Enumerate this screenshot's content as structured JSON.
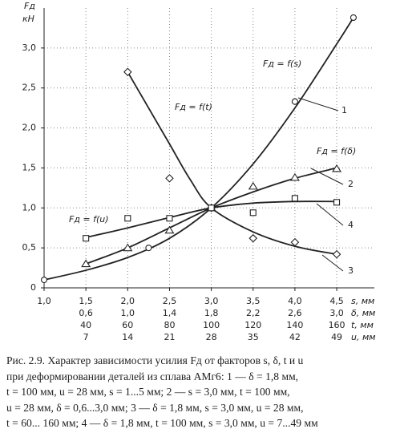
{
  "chart_data": {
    "type": "line",
    "y_label": "Fд",
    "y_unit": "кН",
    "xlim": [
      1.0,
      4.95
    ],
    "ylim": [
      0,
      3.5
    ],
    "xticks": [
      {
        "value": 1.0,
        "label": "1,0"
      },
      {
        "value": 1.5,
        "label": "1,5"
      },
      {
        "value": 2.0,
        "label": "2,0"
      },
      {
        "value": 2.5,
        "label": "2,5"
      },
      {
        "value": 3.0,
        "label": "3,0"
      },
      {
        "value": 3.5,
        "label": "3,5"
      },
      {
        "value": 4.0,
        "label": "4,0"
      },
      {
        "value": 4.5,
        "label": "4,5"
      }
    ],
    "yticks": [
      0,
      {
        "value": 0.5,
        "label": "0,5"
      },
      {
        "value": 1.0,
        "label": "1,0"
      },
      {
        "value": 1.5,
        "label": "1,5"
      },
      {
        "value": 2.0,
        "label": "2,0"
      },
      {
        "value": 2.5,
        "label": "2,5"
      },
      {
        "value": 3.0,
        "label": "3,0"
      }
    ],
    "x_rows": [
      {
        "name": "s, мм",
        "labels": null
      },
      {
        "name": "δ, мм",
        "labels": [
          null,
          "0,6",
          "1,0",
          "1,4",
          "1,8",
          "2,2",
          "2,6",
          "3,0"
        ]
      },
      {
        "name": "t, мм",
        "labels": [
          null,
          "40",
          "60",
          "80",
          "100",
          "120",
          "140",
          "160"
        ]
      },
      {
        "name": "u, мм",
        "labels": [
          null,
          "7",
          "14",
          "21",
          "28",
          "35",
          "42",
          "49"
        ]
      }
    ],
    "grid": true,
    "series": [
      {
        "name": "Fд = f(s)",
        "number": "1",
        "marker": "circle",
        "color": "#222",
        "x": [
          1.0,
          2.25,
          3.0,
          4.0,
          4.7
        ],
        "values": [
          0.1,
          0.5,
          1.0,
          2.33,
          3.38
        ],
        "fit_x": [
          1.0,
          1.5,
          2.0,
          2.5,
          3.0,
          3.5,
          4.0,
          4.5,
          4.7
        ],
        "fit_values": [
          0.1,
          0.22,
          0.38,
          0.62,
          1.0,
          1.55,
          2.25,
          3.05,
          3.38
        ]
      },
      {
        "name": "Fд = f(δ)",
        "number": "2",
        "marker": "triangle",
        "color": "#222",
        "x": [
          1.5,
          2.0,
          2.5,
          3.0,
          3.5,
          4.0,
          4.5
        ],
        "values": [
          0.3,
          0.5,
          0.72,
          1.0,
          1.27,
          1.38,
          1.49
        ],
        "fit_x": [
          1.5,
          2.0,
          2.5,
          3.0,
          3.5,
          4.0,
          4.5
        ],
        "fit_values": [
          0.3,
          0.5,
          0.75,
          1.0,
          1.2,
          1.37,
          1.5
        ]
      },
      {
        "name": "Fд = f(t)",
        "number": "3",
        "marker": "diamond",
        "color": "#222",
        "x": [
          2.0,
          2.5,
          3.0,
          3.5,
          4.0,
          4.5
        ],
        "values": [
          2.7,
          1.37,
          1.0,
          0.62,
          0.57,
          0.42
        ],
        "fit_x": [
          2.0,
          2.25,
          2.5,
          2.75,
          3.0,
          3.5,
          4.0,
          4.5
        ],
        "fit_values": [
          2.7,
          2.25,
          1.8,
          1.35,
          1.0,
          0.7,
          0.52,
          0.42
        ]
      },
      {
        "name": "Fд = f(u)",
        "number": "4",
        "marker": "square",
        "color": "#222",
        "x": [
          1.5,
          2.0,
          2.5,
          3.0,
          3.5,
          4.0,
          4.5
        ],
        "values": [
          0.62,
          0.87,
          0.87,
          1.0,
          0.94,
          1.12,
          1.07
        ],
        "fit_x": [
          1.5,
          2.0,
          2.5,
          3.0,
          3.5,
          4.0,
          4.5
        ],
        "fit_values": [
          0.63,
          0.75,
          0.88,
          1.0,
          1.06,
          1.08,
          1.08
        ]
      }
    ]
  },
  "caption": [
    "Рис. 2.9. Характер зависимости усилия Fд от факторов s, δ, t и u",
    "при деформировании деталей из сплава АМг6: 1 — δ = 1,8 мм,",
    "t = 100 мм, u = 28 мм, s = 1...5 мм; 2 — s = 3,0 мм, t = 100 мм,",
    "u = 28 мм, δ = 0,6...3,0 мм; 3 — δ = 1,8 мм, s = 3,0 мм, u = 28 мм,",
    "t = 60... 160 мм; 4 — δ = 1,8 мм, t = 100 мм, s = 3,0 мм, u = 7...49 мм"
  ]
}
